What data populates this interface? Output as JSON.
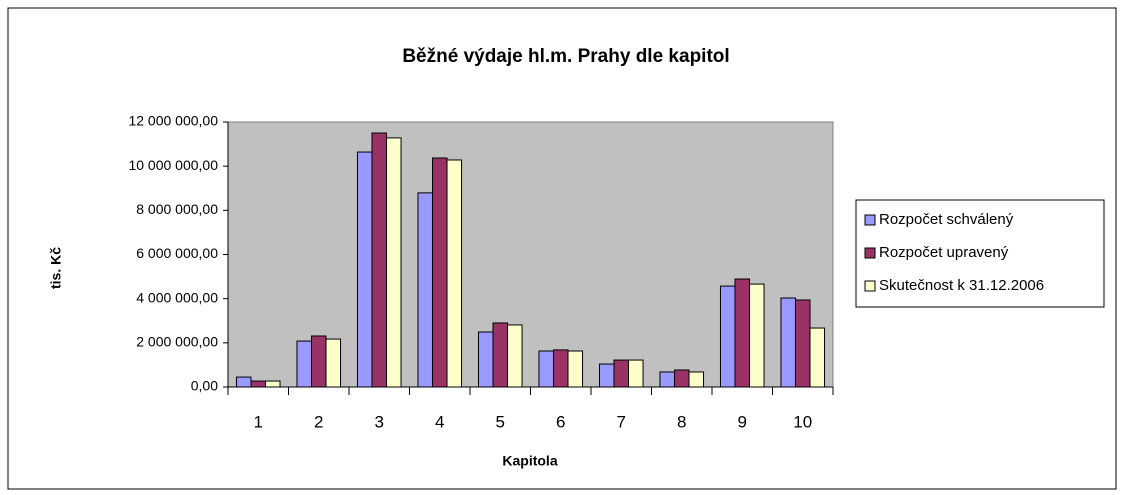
{
  "chart_data": {
    "type": "bar",
    "title": "Běžné výdaje hl.m. Prahy dle kapitol",
    "x_label": "Kapitola",
    "y_label": "tis. Kč",
    "categories": [
      "1",
      "2",
      "3",
      "4",
      "5",
      "6",
      "7",
      "8",
      "9",
      "10"
    ],
    "series": [
      {
        "name": "Rozpočet schválený",
        "color": "#9999ff",
        "values": [
          450000,
          2080000,
          10640000,
          8790000,
          2490000,
          1630000,
          1040000,
          680000,
          4570000,
          4030000
        ]
      },
      {
        "name": "Rozpočet upravený",
        "color": "#993366",
        "values": [
          270000,
          2310000,
          11500000,
          10370000,
          2900000,
          1680000,
          1220000,
          770000,
          4890000,
          3940000
        ]
      },
      {
        "name": "Skutečnost k 31.12.2006",
        "color": "#ffffcc",
        "values": [
          270000,
          2170000,
          11280000,
          10280000,
          2810000,
          1630000,
          1220000,
          680000,
          4660000,
          2670000
        ]
      }
    ],
    "ylim": [
      0,
      12000000
    ],
    "yticks": [
      {
        "value": 0,
        "label": "0,00"
      },
      {
        "value": 2000000,
        "label": "2 000 000,00"
      },
      {
        "value": 4000000,
        "label": "4 000 000,00"
      },
      {
        "value": 6000000,
        "label": "6 000 000,00"
      },
      {
        "value": 8000000,
        "label": "8 000 000,00"
      },
      {
        "value": 10000000,
        "label": "10 000 000,00"
      },
      {
        "value": 12000000,
        "label": "12 000 000,00"
      }
    ],
    "plot_background": "#c0c0c0",
    "legend": "right"
  }
}
